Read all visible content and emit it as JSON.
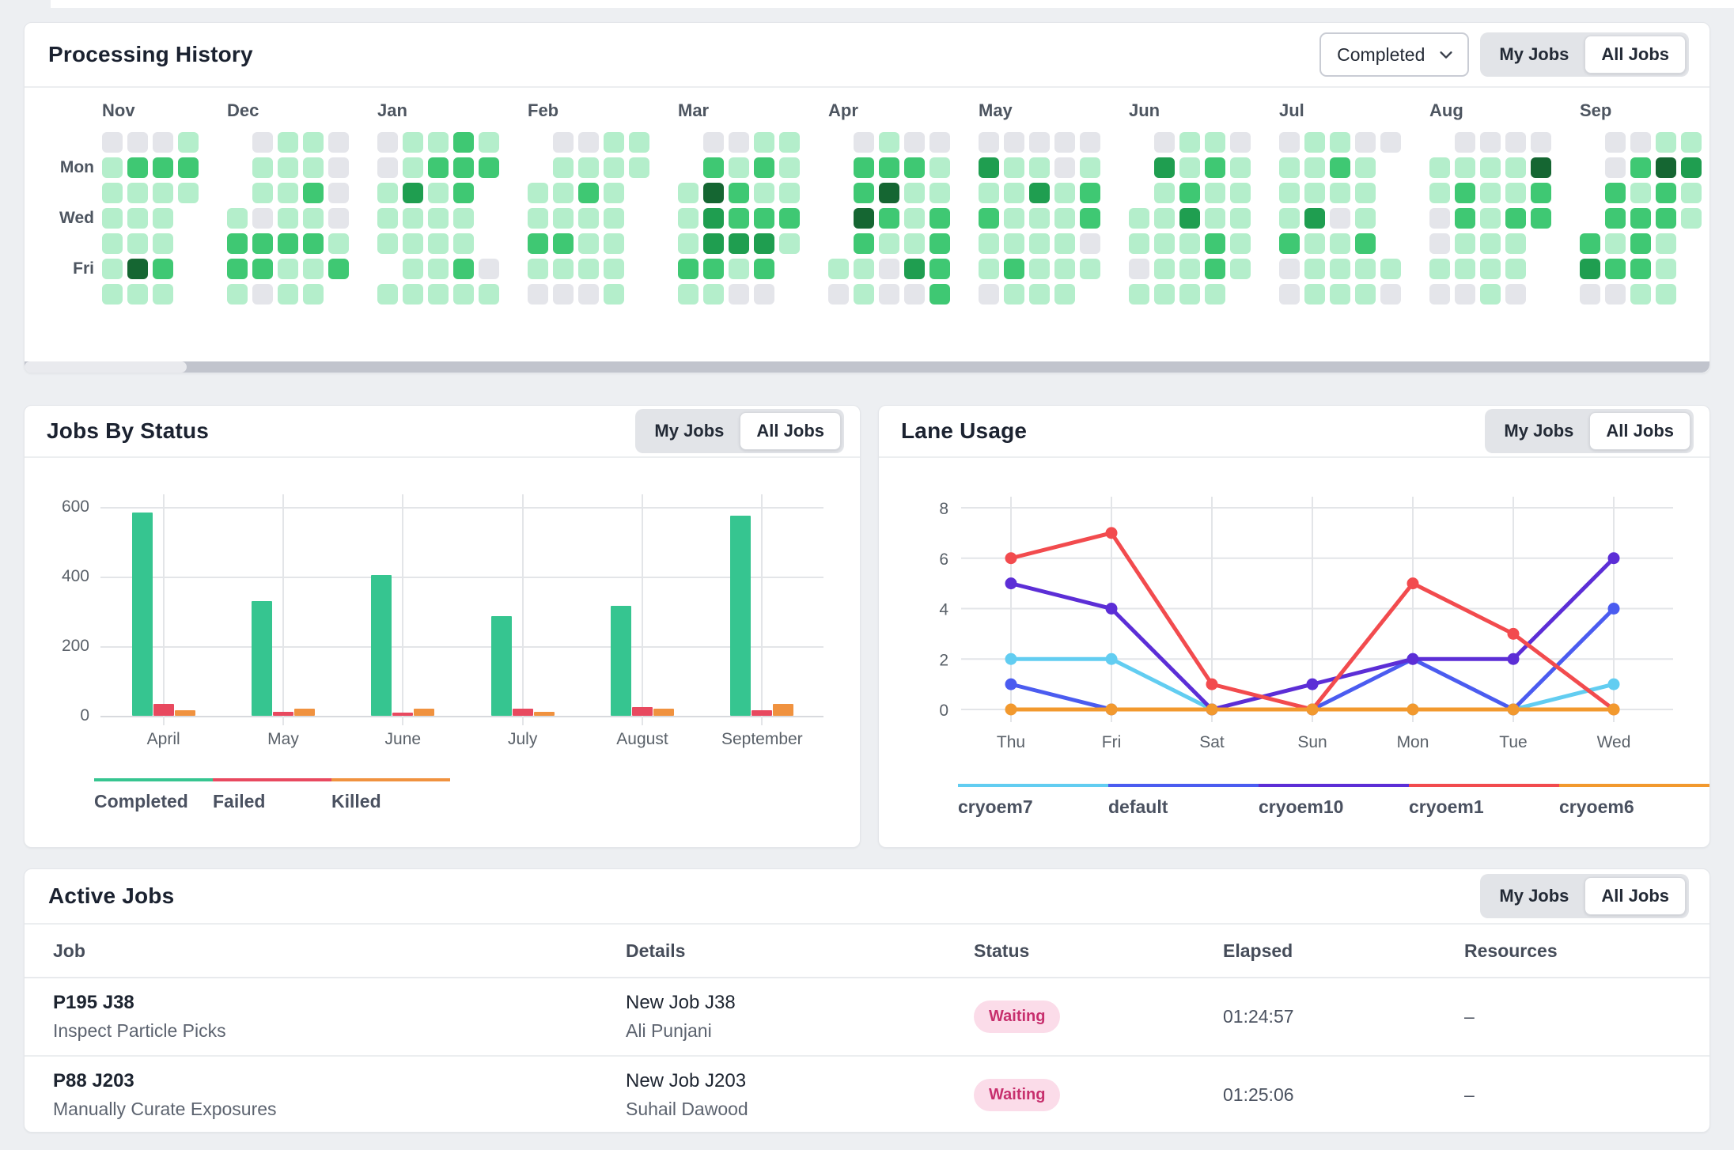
{
  "processing_history": {
    "title": "Processing History",
    "filter_value": "Completed",
    "toggle": {
      "my": "My Jobs",
      "all": "All Jobs",
      "selected": "All Jobs"
    },
    "weekday_labels": [
      "Mon",
      "Wed",
      "Fri"
    ],
    "cell_colors": [
      "#e4e5ea",
      "#b4eecb",
      "#3fc873",
      "#1f9e50",
      "#156632"
    ],
    "months": [
      {
        "label": "Nov",
        "rows": [
          "0001",
          "1222",
          "1111",
          "111.",
          "111.",
          "142.",
          "111."
        ]
      },
      {
        "label": "Dec",
        "rows": [
          ".0110",
          ".1110",
          ".1120",
          "10110",
          "22221",
          "22112",
          "1011."
        ]
      },
      {
        "label": "Jan",
        "rows": [
          "01121",
          "01222",
          "1312.",
          "1111.",
          "1111.",
          ".1120",
          "11111"
        ]
      },
      {
        "label": "Feb",
        "rows": [
          ".0011",
          ".1111",
          "1121.",
          "1111.",
          "2211.",
          "1111.",
          "0001."
        ]
      },
      {
        "label": "Mar",
        "rows": [
          ".0011",
          ".2121",
          "14211",
          "13222",
          "13331",
          "2212.",
          "1100."
        ]
      },
      {
        "label": "Apr",
        "rows": [
          ".0100",
          ".2221",
          ".2411",
          ".4212",
          ".2112",
          "11032",
          "01002"
        ]
      },
      {
        "label": "May",
        "rows": [
          "00000",
          "31101",
          "11312",
          "21112",
          "11110",
          "12111",
          "0111."
        ]
      },
      {
        "label": "Jun",
        "rows": [
          ".0110",
          ".3121",
          ".1211",
          "11311",
          "11121",
          "01121",
          "1111."
        ]
      },
      {
        "label": "Jul",
        "rows": [
          "01100",
          "1121.",
          "1111.",
          "1301.",
          "2112.",
          "01111",
          "01110"
        ]
      },
      {
        "label": "Aug",
        "rows": [
          ".0000",
          "11114",
          "12112",
          "02122",
          "0111.",
          "1111.",
          "0010."
        ]
      },
      {
        "label": "Sep",
        "rows": [
          ".0011",
          ".0243",
          ".2121",
          ".2221",
          "2121.",
          "3221.",
          "0011."
        ]
      }
    ]
  },
  "jobs_by_status": {
    "title": "Jobs By Status",
    "toggle": {
      "my": "My Jobs",
      "all": "All Jobs",
      "selected": "All Jobs"
    }
  },
  "lane_usage": {
    "title": "Lane Usage",
    "toggle": {
      "my": "My Jobs",
      "all": "All Jobs",
      "selected": "All Jobs"
    }
  },
  "chart_data": [
    {
      "type": "bar",
      "title": "Jobs By Status",
      "categories": [
        "April",
        "May",
        "June",
        "July",
        "August",
        "September"
      ],
      "series": [
        {
          "name": "Completed",
          "color": "#36c590",
          "values": [
            585,
            330,
            405,
            287,
            315,
            575
          ]
        },
        {
          "name": "Failed",
          "color": "#e8495f",
          "values": [
            35,
            12,
            8,
            20,
            25,
            15
          ]
        },
        {
          "name": "Killed",
          "color": "#f0923f",
          "values": [
            15,
            20,
            20,
            12,
            20,
            33
          ]
        }
      ],
      "xlabel": "",
      "ylabel": "",
      "ylim": [
        0,
        600
      ],
      "yticks": [
        0,
        200,
        400,
        600
      ],
      "grid": true,
      "legend_position": "bottom"
    },
    {
      "type": "line",
      "title": "Lane Usage",
      "x": [
        "Thu",
        "Fri",
        "Sat",
        "Sun",
        "Mon",
        "Tue",
        "Wed"
      ],
      "series": [
        {
          "name": "cryoem7",
          "color": "#62cdf1",
          "values": [
            2,
            2,
            0,
            0,
            0,
            0,
            1
          ]
        },
        {
          "name": "default",
          "color": "#4b5cf0",
          "values": [
            1,
            0,
            0,
            0,
            2,
            0,
            4
          ]
        },
        {
          "name": "cryoem10",
          "color": "#5c2ed6",
          "values": [
            5,
            4,
            0,
            1,
            2,
            2,
            6
          ]
        },
        {
          "name": "cryoem1",
          "color": "#f24b4e",
          "values": [
            6,
            7,
            1,
            0,
            5,
            3,
            0
          ]
        },
        {
          "name": "cryoem6",
          "color": "#f2992e",
          "values": [
            0,
            0,
            0,
            0,
            0,
            0,
            0
          ]
        }
      ],
      "xlabel": "",
      "ylabel": "",
      "ylim": [
        0,
        8
      ],
      "yticks": [
        0,
        2,
        4,
        6,
        8
      ],
      "grid": true,
      "legend_position": "bottom"
    }
  ],
  "active_jobs": {
    "title": "Active Jobs",
    "toggle": {
      "my": "My Jobs",
      "all": "All Jobs",
      "selected": "All Jobs"
    },
    "columns": [
      "Job",
      "Details",
      "Status",
      "Elapsed",
      "Resources"
    ],
    "rows": [
      {
        "job_id": "P195 J38",
        "job_name": "Inspect Particle Picks",
        "details_line1": "New Job J38",
        "details_line2": "Ali Punjani",
        "status": "Waiting",
        "elapsed": "01:24:57",
        "resources": "–"
      },
      {
        "job_id": "P88 J203",
        "job_name": "Manually Curate Exposures",
        "details_line1": "New Job J203",
        "details_line2": "Suhail Dawood",
        "status": "Waiting",
        "elapsed": "01:25:06",
        "resources": "–"
      }
    ]
  }
}
